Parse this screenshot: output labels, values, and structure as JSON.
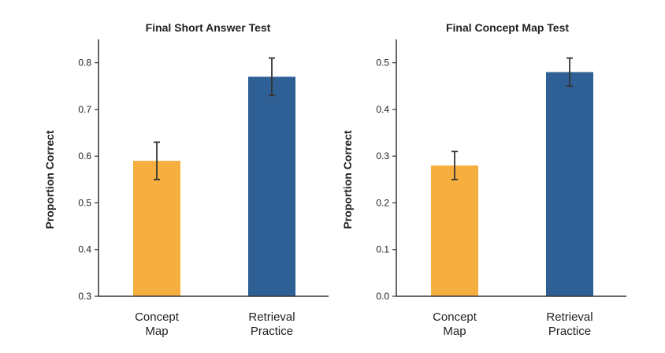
{
  "chart_data": [
    {
      "type": "bar",
      "title": "Final Short Answer Test",
      "ylabel": "Proportion Correct",
      "xlabel": "",
      "categories": [
        "Concept\nMap",
        "Retrieval\nPractice"
      ],
      "values": [
        0.59,
        0.77
      ],
      "error": [
        0.04,
        0.04
      ],
      "colors": [
        "#F6AE3F",
        "#2E5F95"
      ],
      "ylim": [
        0.3,
        0.85
      ],
      "yticks": [
        0.3,
        0.4,
        0.5,
        0.6,
        0.7,
        0.8
      ],
      "ytick_labels": [
        "0.3",
        "0.4",
        "0.5",
        "0.6",
        "0.7",
        "0.8"
      ],
      "grid": false,
      "legend": "none"
    },
    {
      "type": "bar",
      "title": "Final Concept Map Test",
      "ylabel": "Proportion Correct",
      "xlabel": "",
      "categories": [
        "Concept\nMap",
        "Retrieval\nPractice"
      ],
      "values": [
        0.28,
        0.48
      ],
      "error": [
        0.03,
        0.03
      ],
      "colors": [
        "#F6AE3F",
        "#2E5F95"
      ],
      "ylim": [
        0.0,
        0.55
      ],
      "yticks": [
        0.0,
        0.1,
        0.2,
        0.3,
        0.4,
        0.5
      ],
      "ytick_labels": [
        "0.0",
        "0.1",
        "0.2",
        "0.3",
        "0.4",
        "0.5"
      ],
      "grid": false,
      "legend": "none"
    }
  ]
}
